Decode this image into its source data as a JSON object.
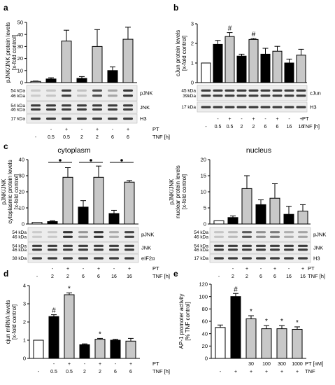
{
  "colors": {
    "black": "#000000",
    "white": "#ffffff",
    "grey": "#c8c8c8"
  },
  "panels": {
    "a": {
      "label": "a"
    },
    "b": {
      "label": "b"
    },
    "c": {
      "label": "c",
      "cytoplasm_title": "cytoplasm",
      "nucleus_title": "nucleus"
    },
    "d": {
      "label": "d"
    },
    "e": {
      "label": "e"
    }
  },
  "chart_data": [
    {
      "id": "a",
      "type": "bar",
      "ylabel": [
        "pJNK/JNK protein levels",
        "[x-fold control]"
      ],
      "ylim": [
        0,
        50
      ],
      "yticks": [
        0,
        10,
        20,
        30,
        40,
        50
      ],
      "categories": [
        "-",
        "0.5",
        "0.5",
        "2",
        "2",
        "6",
        "6"
      ],
      "pt": [
        "",
        "-",
        "+",
        "-",
        "+",
        "-",
        "+"
      ],
      "fills": [
        "white",
        "black",
        "grey",
        "black",
        "grey",
        "black",
        "grey"
      ],
      "values": [
        1,
        3,
        34.5,
        3.5,
        30,
        10,
        36
      ],
      "errors": [
        0.3,
        1,
        9,
        1.5,
        14,
        3,
        10
      ],
      "markers": [],
      "blots": [
        {
          "label": "pJNK",
          "kda": [
            "54 kDa",
            "46 kDa"
          ]
        },
        {
          "label": "JNK",
          "kda": [
            "54 kDa",
            "46 kDa"
          ]
        },
        {
          "label": "H3",
          "kda": [
            "17 kDa"
          ]
        }
      ],
      "row_labels": {
        "pt": "PT",
        "tnf": "TNF [h]"
      }
    },
    {
      "id": "b",
      "type": "bar",
      "ylabel": [
        "cJun protein levels",
        "[x-fold control]"
      ],
      "ylim": [
        0,
        3
      ],
      "yticks": [
        0,
        1,
        2,
        3
      ],
      "categories": [
        "-",
        "0.5",
        "0.5",
        "2",
        "2",
        "6",
        "6",
        "16",
        "16"
      ],
      "pt": [
        "",
        "-",
        "+",
        "-",
        "+",
        "-",
        "+",
        "-",
        "+"
      ],
      "fills": [
        "white",
        "black",
        "grey",
        "black",
        "grey",
        "black",
        "grey",
        "black",
        "grey"
      ],
      "values": [
        1,
        1.95,
        2.35,
        1.35,
        2.2,
        1.45,
        1.6,
        1.0,
        1.4
      ],
      "errors": [
        0,
        0.2,
        0.2,
        0.1,
        0.05,
        0.3,
        0.25,
        0.2,
        0.3
      ],
      "markers": [
        {
          "index": 2,
          "symbol": "#"
        },
        {
          "index": 4,
          "symbol": "#"
        }
      ],
      "blots": [
        {
          "label": "cJun",
          "kda": [
            "45 kDa",
            "39kDa"
          ]
        },
        {
          "label": "H3",
          "kda": [
            "17 kDa"
          ]
        }
      ],
      "row_labels": {
        "pt": "PT",
        "tnf": "TNF [h]"
      }
    },
    {
      "id": "c-cytoplasm",
      "type": "bar",
      "ylabel": [
        "pJNK/JNK",
        "cytoplasmic protein levels",
        "[x-fold control]"
      ],
      "ylim": [
        0,
        40
      ],
      "yticks": [
        0,
        10,
        20,
        30,
        40
      ],
      "categories": [
        "-",
        "2",
        "2",
        "6",
        "6",
        "16",
        "16"
      ],
      "pt": [
        "",
        "-",
        "+",
        "-",
        "+",
        "-",
        "+"
      ],
      "fills": [
        "white",
        "black",
        "grey",
        "black",
        "grey",
        "black",
        "grey"
      ],
      "values": [
        1,
        1.5,
        29,
        10.5,
        29,
        6.5,
        26
      ],
      "errors": [
        0,
        0.5,
        6,
        4,
        7,
        2,
        1
      ],
      "brackets": [
        {
          "from": 1,
          "to": 2
        },
        {
          "from": 3,
          "to": 4
        },
        {
          "from": 5,
          "to": 6
        }
      ],
      "blots": [
        {
          "label": "pJNK",
          "kda": [
            "54 kDa",
            "46 kDa"
          ]
        },
        {
          "label": "JNK",
          "kda": [
            "54 kDa",
            "46 kDa"
          ]
        },
        {
          "label": "eIF2α",
          "kda": [
            "38 kDa"
          ]
        }
      ],
      "row_labels": {
        "pt": "PT",
        "tnf": "TNF [h]"
      }
    },
    {
      "id": "c-nucleus",
      "type": "bar",
      "ylabel": [
        "pJNK/JNK",
        "nuclear protein levels",
        "[x-fold control]"
      ],
      "ylim": [
        0,
        20
      ],
      "yticks": [
        0,
        5,
        10,
        15,
        20
      ],
      "categories": [
        "-",
        "2",
        "2",
        "6",
        "6",
        "16",
        "16"
      ],
      "pt": [
        "",
        "-",
        "+",
        "-",
        "+",
        "-",
        "+"
      ],
      "fills": [
        "white",
        "black",
        "grey",
        "black",
        "grey",
        "black",
        "grey"
      ],
      "values": [
        1,
        2,
        11,
        6,
        8,
        3,
        4
      ],
      "errors": [
        0,
        0.5,
        4,
        1.5,
        4.5,
        2.5,
        2
      ],
      "blots": [
        {
          "label": "pJNK",
          "kda": [
            "54 kDa",
            "46 kDa"
          ]
        },
        {
          "label": "JNK",
          "kda": [
            "54 kDa",
            "46 kDa"
          ]
        },
        {
          "label": "H3",
          "kda": [
            "17 kDa"
          ]
        }
      ],
      "row_labels": {
        "pt": "PT",
        "tnf": "TNF [h]"
      }
    },
    {
      "id": "d",
      "type": "bar",
      "ylabel": [
        "cjun mRNA levels",
        "[x-fold control]"
      ],
      "ylim": [
        0,
        4
      ],
      "yticks": [
        0,
        1,
        2,
        3,
        4
      ],
      "categories": [
        "-",
        "0.5",
        "0.5",
        "2",
        "2",
        "6",
        "6"
      ],
      "pt": [
        "",
        "-",
        "+",
        "-",
        "+",
        "-",
        "+"
      ],
      "fills": [
        "white",
        "black",
        "grey",
        "black",
        "grey",
        "black",
        "grey"
      ],
      "values": [
        1,
        2.3,
        3.5,
        0.75,
        1.05,
        1.0,
        0.95
      ],
      "errors": [
        0,
        0.1,
        0.1,
        0.05,
        0.05,
        0.05,
        0.15
      ],
      "markers": [
        {
          "index": 1,
          "symbol": "#"
        },
        {
          "index": 2,
          "symbol": "*"
        },
        {
          "index": 4,
          "symbol": "*"
        }
      ],
      "row_labels": {
        "pt": "PT",
        "tnf": "TNF [h]"
      }
    },
    {
      "id": "e",
      "type": "bar",
      "ylabel": [
        "AP-1 promoter activity",
        "[% TNF control]"
      ],
      "ylim": [
        0,
        120
      ],
      "yticks": [
        0,
        20,
        40,
        60,
        80,
        100,
        120
      ],
      "categories": [
        "-",
        "+",
        "+",
        "+",
        "+",
        "+"
      ],
      "pt": [
        "",
        "",
        "30",
        "100",
        "300",
        "1000"
      ],
      "fills": [
        "white",
        "black",
        "grey",
        "grey",
        "grey",
        "grey"
      ],
      "values": [
        50,
        100,
        64,
        48,
        48,
        47
      ],
      "errors": [
        4,
        5,
        5,
        5,
        5,
        4
      ],
      "markers": [
        {
          "index": 1,
          "symbol": "#"
        },
        {
          "index": 2,
          "symbol": "*"
        },
        {
          "index": 3,
          "symbol": "*"
        },
        {
          "index": 4,
          "symbol": "*"
        },
        {
          "index": 5,
          "symbol": "*"
        }
      ],
      "row_labels": {
        "pt": "PT [nM]",
        "tnf": "TNF"
      }
    }
  ]
}
